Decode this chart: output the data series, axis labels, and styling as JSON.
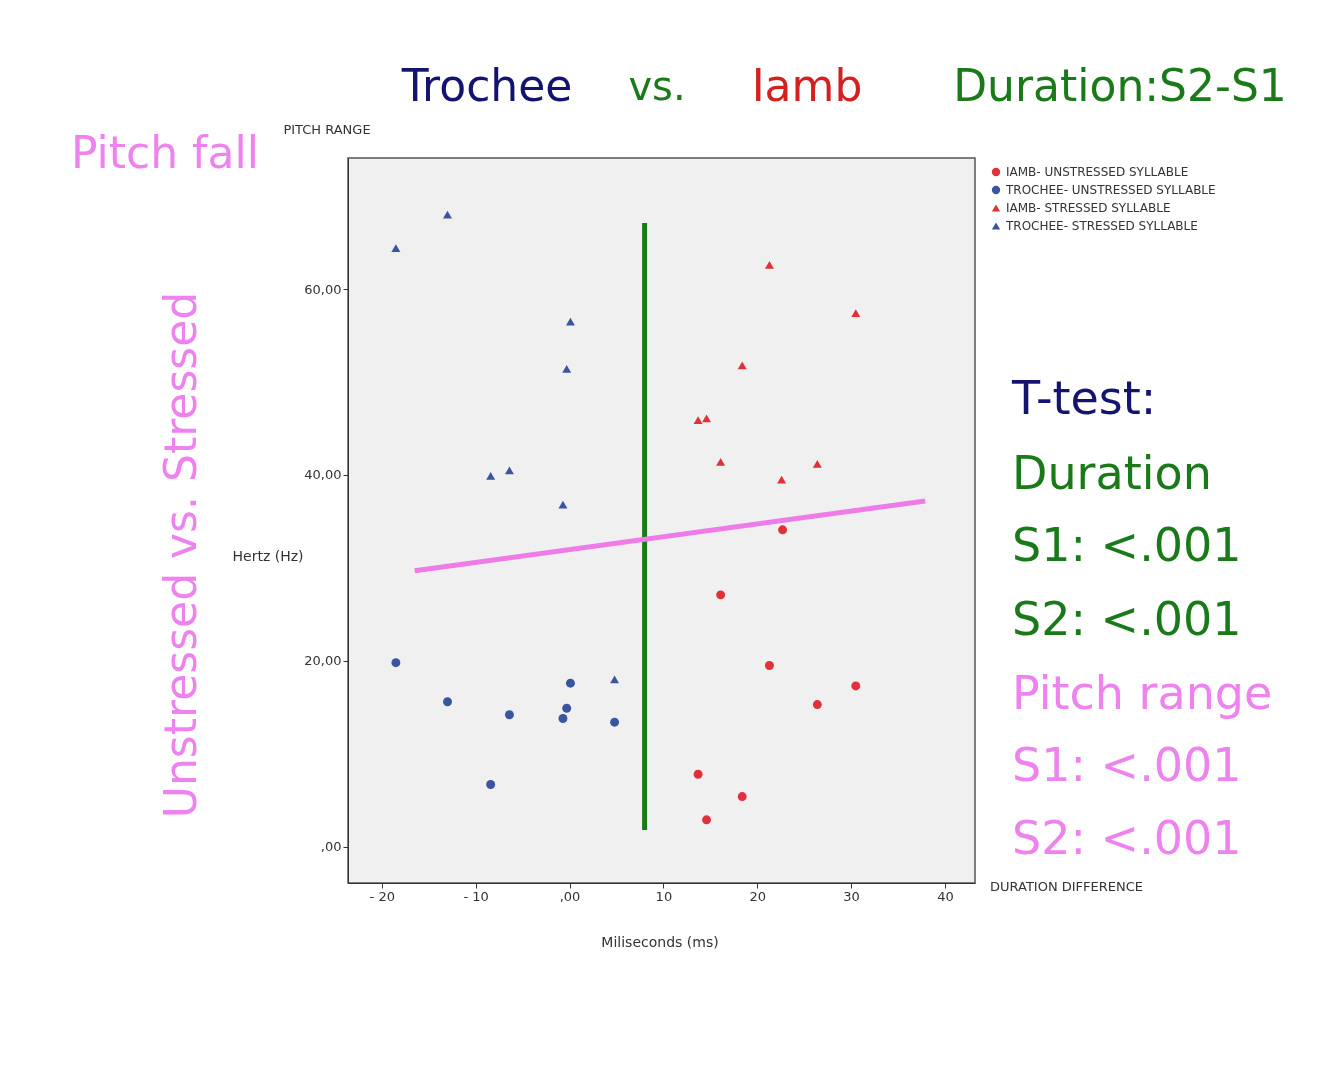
{
  "chart_data": {
    "type": "scatter",
    "xlabel": "Miliseconds (ms)",
    "ylabel": "Hertz (Hz)",
    "xlim": [
      -23.6,
      43.2
    ],
    "ylim": [
      -3.9,
      74.1
    ],
    "xticks": [
      {
        "value": -20,
        "label": "- 20"
      },
      {
        "value": -10,
        "label": "- 10"
      },
      {
        "value": 0,
        "label": ",00"
      },
      10,
      20,
      30,
      40
    ],
    "yticks": [
      {
        "value": 0,
        "label": ",00"
      },
      {
        "value": 20,
        "label": "20,00"
      },
      {
        "value": 40,
        "label": "40,00"
      },
      {
        "value": 60,
        "label": "60,00"
      }
    ],
    "grid": false,
    "legend": "top right",
    "series": [
      {
        "name": "IAMB- UNSTRESSED SYLLABLE",
        "color": "#e0303a",
        "marker": "circle",
        "x": [
          22.7,
          16.1,
          21.3,
          30.5,
          26.4,
          13.7,
          18.4,
          14.6
        ],
        "values": [
          34.1,
          27.1,
          19.5,
          17.3,
          15.3,
          7.8,
          5.4,
          2.9
        ]
      },
      {
        "name": "TROCHEE- UNSTRESSED SYLLABLE",
        "color": "#3a55a0",
        "marker": "circle",
        "x": [
          -18.5,
          -13.0,
          -6.4,
          -8.4,
          0.1,
          -0.3,
          -0.7,
          4.8
        ],
        "values": [
          19.8,
          15.6,
          14.2,
          6.7,
          17.6,
          14.9,
          13.8,
          13.4
        ]
      },
      {
        "name": "IAMB- STRESSED SYLLABLE",
        "color": "#e0303a",
        "marker": "triangle",
        "x": [
          21.3,
          30.5,
          18.4,
          13.7,
          14.6,
          16.1,
          22.6,
          26.4
        ],
        "values": [
          62.6,
          57.4,
          51.8,
          45.9,
          46.1,
          41.4,
          39.5,
          41.2
        ]
      },
      {
        "name": "TROCHEE- STRESSED SYLLABLE",
        "color": "#3a55a0",
        "marker": "triangle",
        "x": [
          -18.5,
          -13.0,
          0.1,
          -0.3,
          -8.4,
          -6.4,
          -0.7,
          4.8
        ],
        "values": [
          64.4,
          68.0,
          56.5,
          51.4,
          39.9,
          40.5,
          36.8,
          18.0
        ]
      },
      {
        "type": "line",
        "color": "#1a7a1a",
        "x": [
          8.0,
          8.0
        ],
        "values": [
          1.8,
          67.1
        ]
      },
      {
        "type": "line",
        "color": "#ee7be8",
        "x": [
          -16.5,
          37.9
        ],
        "values": [
          29.7,
          37.2
        ]
      }
    ],
    "annotations": [
      "Trochee",
      "vs.",
      "Iamb",
      "Duration:S2-S1",
      "Pitch fall",
      "PITCH RANGE",
      "Unstressed  vs.  Stressed",
      "DURATION DIFFERENCE",
      "T-test:",
      "Duration",
      "S1: <.001",
      "S2: <.001",
      "Pitch range",
      "S1: <.001",
      "S2: <.001"
    ]
  }
}
